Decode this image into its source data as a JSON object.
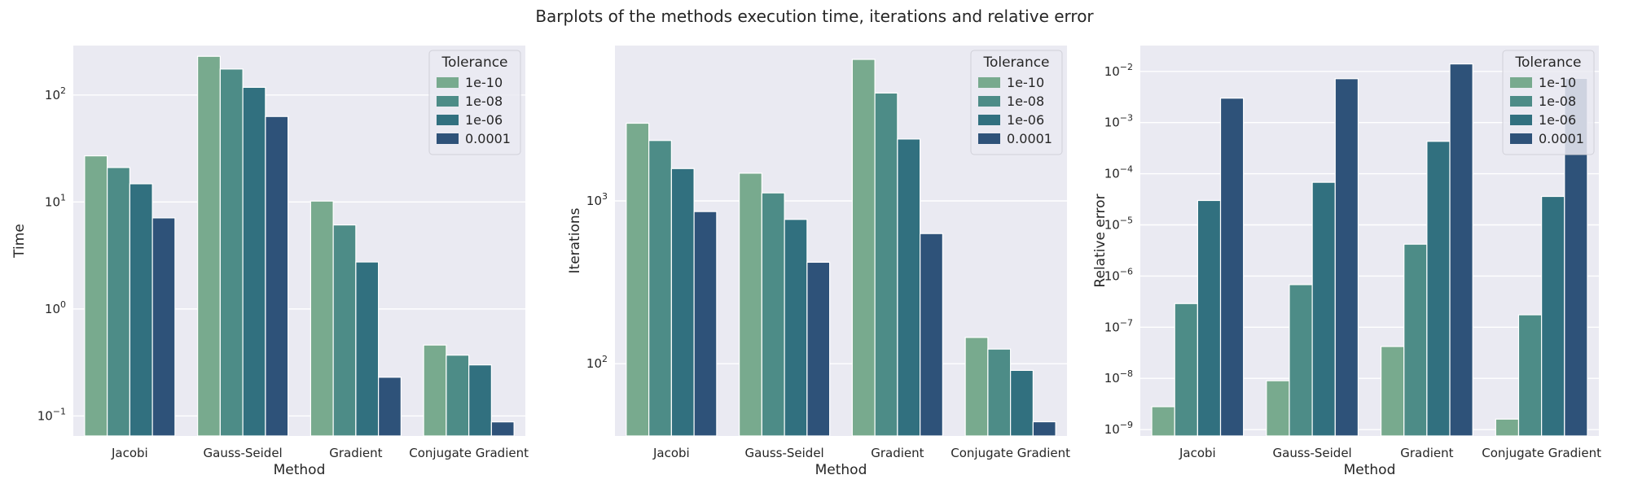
{
  "figure": {
    "title": "Barplots of the methods execution time, iterations and relative error"
  },
  "chart_data": [
    {
      "type": "bar",
      "yscale": "log",
      "categories": [
        "Jacobi",
        "Gauss-Seidel",
        "Gradient",
        "Conjugate Gradient"
      ],
      "xlabel": "Method",
      "ylabel": "Time",
      "ylim": [
        0.065,
        290
      ],
      "yticks": [
        {
          "value": 0.1,
          "base": "10",
          "exp": "−1"
        },
        {
          "value": 1,
          "base": "10",
          "exp": "0"
        },
        {
          "value": 10,
          "base": "10",
          "exp": "1"
        },
        {
          "value": 100,
          "base": "10",
          "exp": "2"
        }
      ],
      "grid": true,
      "legend": {
        "title": "Tolerance",
        "position": "top-right"
      },
      "series": [
        {
          "name": "1e-10",
          "color": "#78aa8e",
          "values": [
            27,
            230,
            10.2,
            0.46
          ]
        },
        {
          "name": "1e-08",
          "color": "#4d8c87",
          "values": [
            21,
            175,
            6.1,
            0.37
          ]
        },
        {
          "name": "1e-06",
          "color": "#31707f",
          "values": [
            14.8,
            118,
            2.75,
            0.3
          ]
        },
        {
          "name": "0.0001",
          "color": "#2e5279",
          "values": [
            7.1,
            63,
            0.23,
            0.088
          ]
        }
      ]
    },
    {
      "type": "bar",
      "yscale": "log",
      "categories": [
        "Jacobi",
        "Gauss-Seidel",
        "Gradient",
        "Conjugate Gradient"
      ],
      "xlabel": "Method",
      "ylabel": "Iterations",
      "ylim": [
        36,
        9000
      ],
      "yticks": [
        {
          "value": 100,
          "base": "10",
          "exp": "2"
        },
        {
          "value": 1000,
          "base": "10",
          "exp": "3"
        }
      ],
      "grid": true,
      "legend": {
        "title": "Tolerance",
        "position": "top-right"
      },
      "series": [
        {
          "name": "1e-10",
          "color": "#78aa8e",
          "values": [
            3000,
            1480,
            7400,
            145
          ]
        },
        {
          "name": "1e-08",
          "color": "#4d8c87",
          "values": [
            2350,
            1120,
            4600,
            123
          ]
        },
        {
          "name": "1e-06",
          "color": "#31707f",
          "values": [
            1580,
            770,
            2400,
            91
          ]
        },
        {
          "name": "0.0001",
          "color": "#2e5279",
          "values": [
            860,
            420,
            630,
            44
          ]
        }
      ]
    },
    {
      "type": "bar",
      "yscale": "log",
      "categories": [
        "Jacobi",
        "Gauss-Seidel",
        "Gradient",
        "Conjugate Gradient"
      ],
      "xlabel": "Method",
      "ylabel": "Relative error",
      "ylim": [
        7.5e-10,
        0.032
      ],
      "yticks": [
        {
          "value": 1e-09,
          "base": "10",
          "exp": "−9"
        },
        {
          "value": 1e-08,
          "base": "10",
          "exp": "−8"
        },
        {
          "value": 1e-07,
          "base": "10",
          "exp": "−7"
        },
        {
          "value": 1e-06,
          "base": "10",
          "exp": "−6"
        },
        {
          "value": 1e-05,
          "base": "10",
          "exp": "−5"
        },
        {
          "value": 0.0001,
          "base": "10",
          "exp": "−4"
        },
        {
          "value": 0.001,
          "base": "10",
          "exp": "−3"
        },
        {
          "value": 0.01,
          "base": "10",
          "exp": "−2"
        }
      ],
      "grid": true,
      "legend": {
        "title": "Tolerance",
        "position": "top-right"
      },
      "series": [
        {
          "name": "1e-10",
          "color": "#78aa8e",
          "values": [
            2.8e-09,
            9e-09,
            4.2e-08,
            1.6e-09
          ]
        },
        {
          "name": "1e-08",
          "color": "#4d8c87",
          "values": [
            2.9e-07,
            6.8e-07,
            4.2e-06,
            1.75e-07
          ]
        },
        {
          "name": "1e-06",
          "color": "#31707f",
          "values": [
            3e-05,
            6.8e-05,
            0.00043,
            3.6e-05
          ]
        },
        {
          "name": "0.0001",
          "color": "#2e5279",
          "values": [
            0.003,
            0.0072,
            0.014,
            0.0073
          ]
        }
      ]
    }
  ]
}
